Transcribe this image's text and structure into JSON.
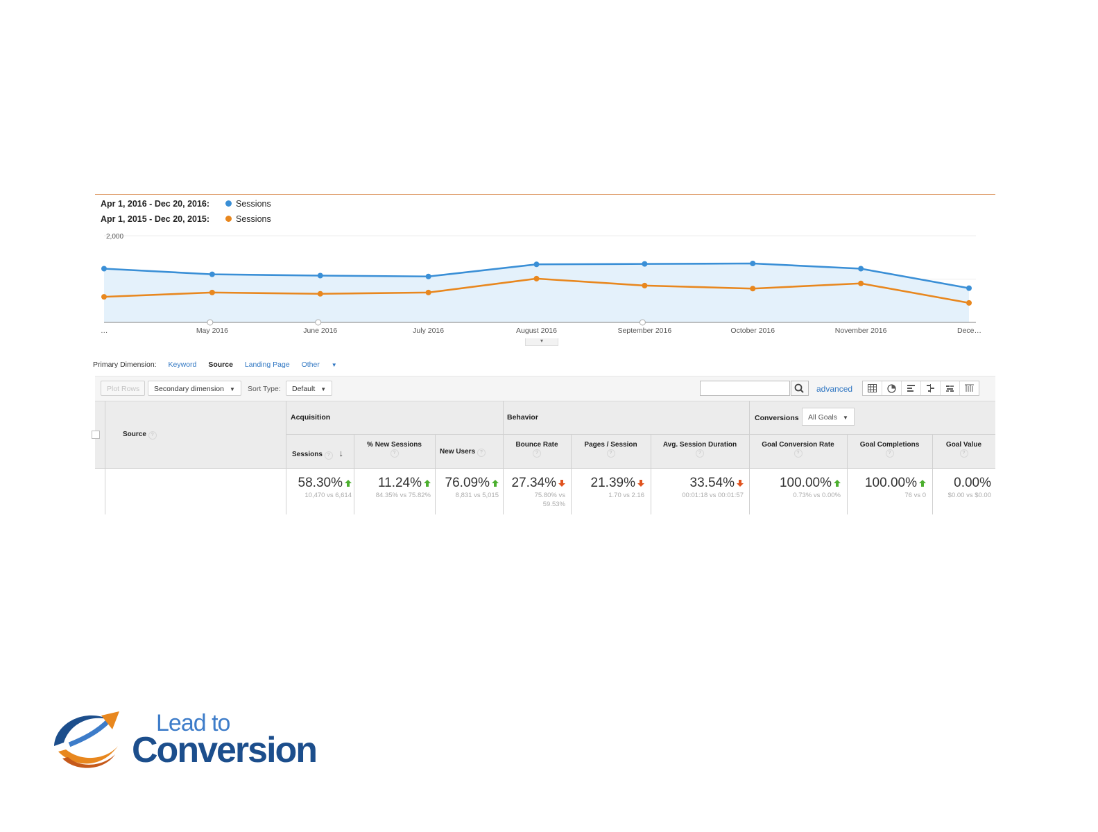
{
  "legend": {
    "current_range": "Apr 1, 2016 - Dec 20, 2016:",
    "previous_range": "Apr 1, 2015 - Dec 20, 2015:",
    "metric": "Sessions",
    "current_color": "#3a8fd6",
    "previous_color": "#e8871e"
  },
  "chart_data": {
    "type": "line",
    "categories": [
      "…",
      "May 2016",
      "June 2016",
      "July 2016",
      "August 2016",
      "September 2016",
      "October 2016",
      "November 2016",
      "Dece…"
    ],
    "series": [
      {
        "name": "Sessions",
        "values": [
          1240,
          1110,
          1080,
          1060,
          1340,
          1350,
          1360,
          1240,
          790
        ]
      },
      {
        "name": "Sessions",
        "values": [
          590,
          690,
          660,
          690,
          1010,
          850,
          780,
          900,
          450
        ]
      }
    ],
    "yticks": [
      "2,000",
      "1,000"
    ],
    "ylim": [
      0,
      2000
    ],
    "grid": true
  },
  "dimension": {
    "label": "Primary Dimension:",
    "options": [
      "Keyword",
      "Source",
      "Landing Page",
      "Other"
    ],
    "active": "Source"
  },
  "toolbar": {
    "plot_rows": "Plot Rows",
    "secondary_dimension": "Secondary dimension",
    "sort_type_label": "Sort Type:",
    "sort_default": "Default",
    "search_placeholder": "",
    "advanced": "advanced"
  },
  "table": {
    "source_header": "Source",
    "groups": {
      "acquisition": "Acquisition",
      "behavior": "Behavior",
      "conversions": "Conversions"
    },
    "goals_select": "All Goals",
    "columns": [
      {
        "label": "Sessions",
        "value": "58.30%",
        "sub": "10,470 vs 6,614",
        "trend": "up"
      },
      {
        "label": "% New Sessions",
        "value": "11.24%",
        "sub": "84.35% vs 75.82%",
        "trend": "up"
      },
      {
        "label": "New Users",
        "value": "76.09%",
        "sub": "8,831 vs 5,015",
        "trend": "up"
      },
      {
        "label": "Bounce Rate",
        "value": "27.34%",
        "sub": "75.80% vs 59.53%",
        "trend": "down"
      },
      {
        "label": "Pages / Session",
        "value": "21.39%",
        "sub": "1.70 vs 2.16",
        "trend": "down"
      },
      {
        "label": "Avg. Session Duration",
        "value": "33.54%",
        "sub": "00:01:18 vs 00:01:57",
        "trend": "down"
      },
      {
        "label": "Goal Conversion Rate",
        "value": "100.00%",
        "sub": "0.73% vs 0.00%",
        "trend": "up"
      },
      {
        "label": "Goal Completions",
        "value": "100.00%",
        "sub": "76 vs 0",
        "trend": "up"
      },
      {
        "label": "Goal Value",
        "value": "0.00%",
        "sub": "$0.00 vs $0.00",
        "trend": "none"
      }
    ]
  },
  "logo": {
    "line1": "Lead to",
    "line2": "Conversion"
  }
}
